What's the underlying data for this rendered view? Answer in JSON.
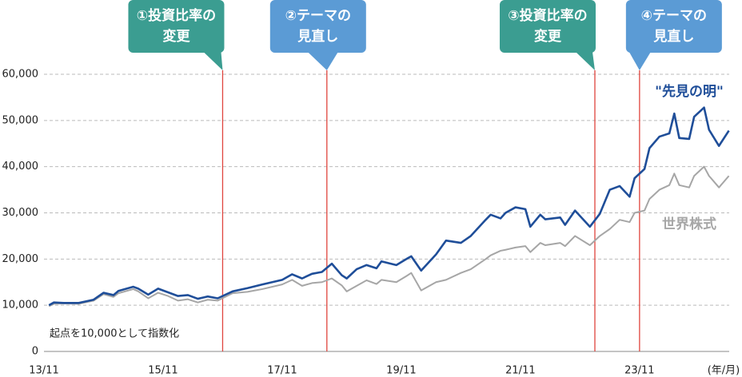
{
  "chart_data": {
    "type": "line",
    "note": "起点を10,000として指数化",
    "xlabel": "(年/月)",
    "x": [
      1,
      2,
      4,
      7,
      10,
      12,
      14,
      15,
      18,
      19,
      21,
      23,
      25,
      27,
      29,
      31,
      33,
      35,
      38,
      41,
      44,
      48,
      50,
      52,
      54,
      56,
      58,
      60,
      61,
      63,
      65,
      67,
      68,
      71,
      73,
      74,
      76,
      79,
      81,
      84,
      86,
      89,
      90,
      92,
      93,
      95,
      97,
      98,
      100,
      101,
      104,
      105,
      107,
      110,
      112,
      114,
      116,
      118,
      119,
      121,
      122,
      124,
      126,
      127,
      128,
      130,
      131,
      133,
      134,
      136,
      138
    ],
    "series": [
      {
        "name": "世界株式",
        "color": "#a6a6a6",
        "values": [
          9800,
          10300,
          10400,
          10300,
          11000,
          12400,
          11800,
          12600,
          13500,
          13000,
          11500,
          12700,
          12000,
          11000,
          11300,
          10600,
          11200,
          11000,
          12600,
          12900,
          13500,
          14500,
          15500,
          14200,
          14800,
          15000,
          15800,
          14300,
          13000,
          14200,
          15400,
          14600,
          15500,
          15000,
          16300,
          17000,
          13200,
          15000,
          15500,
          17000,
          17800,
          20000,
          20800,
          21800,
          22000,
          22500,
          22800,
          21500,
          23500,
          23000,
          23500,
          22800,
          25000,
          23000,
          25000,
          26500,
          28500,
          28000,
          30000,
          30500,
          33000,
          35000,
          36000,
          38500,
          36000,
          35500,
          38000,
          40000,
          38000,
          35500,
          38000
        ]
      },
      {
        "name": "\"先見の明\"",
        "color": "#1f4e99",
        "values": [
          10000,
          10600,
          10500,
          10500,
          11200,
          12700,
          12200,
          13100,
          14000,
          13600,
          12300,
          13600,
          12800,
          12000,
          12200,
          11400,
          11900,
          11500,
          13000,
          13700,
          14500,
          15500,
          16700,
          15800,
          16800,
          17200,
          19000,
          16500,
          15800,
          17800,
          18700,
          18000,
          19500,
          18700,
          20000,
          20600,
          17500,
          21000,
          24000,
          23500,
          25000,
          28500,
          29600,
          28800,
          30000,
          31200,
          30800,
          27000,
          29600,
          28600,
          29000,
          27400,
          30500,
          27000,
          29800,
          35000,
          35800,
          33500,
          37500,
          39500,
          44000,
          46500,
          47200,
          51500,
          46200,
          46000,
          50800,
          52800,
          48000,
          44500,
          47800
        ]
      }
    ],
    "xlim": [
      0,
      140
    ],
    "xticks": [
      {
        "value": 0,
        "label": "13/11"
      },
      {
        "value": 24,
        "label": "15/11"
      },
      {
        "value": 48,
        "label": "17/11"
      },
      {
        "value": 72,
        "label": "19/11"
      },
      {
        "value": 96,
        "label": "21/11"
      },
      {
        "value": 120,
        "label": "23/11"
      }
    ],
    "ylim": [
      0,
      60000
    ],
    "yticks": [
      0,
      {
        "value": 10000,
        "label": "10,000"
      },
      {
        "value": 20000,
        "label": "20,000"
      },
      {
        "value": 30000,
        "label": "30,000"
      },
      {
        "value": 40000,
        "label": "40,000"
      },
      {
        "value": 50000,
        "label": "50,000"
      },
      {
        "value": 60000,
        "label": "60,000"
      }
    ],
    "grid": true,
    "annotations": [
      {
        "x": 36,
        "lines": [
          "①投資比率の",
          "変更"
        ],
        "color": "#3b9d91"
      },
      {
        "x": 57,
        "lines": [
          "②テーマの",
          "見直し"
        ],
        "color": "#5b9bd5"
      },
      {
        "x": 111,
        "lines": [
          "③投資比率の",
          "変更"
        ],
        "color": "#3b9d91"
      },
      {
        "x": 120,
        "lines": [
          "④テーマの",
          "見直し"
        ],
        "color": "#5b9bd5"
      }
    ],
    "marker_line_color": "#e0453e"
  }
}
